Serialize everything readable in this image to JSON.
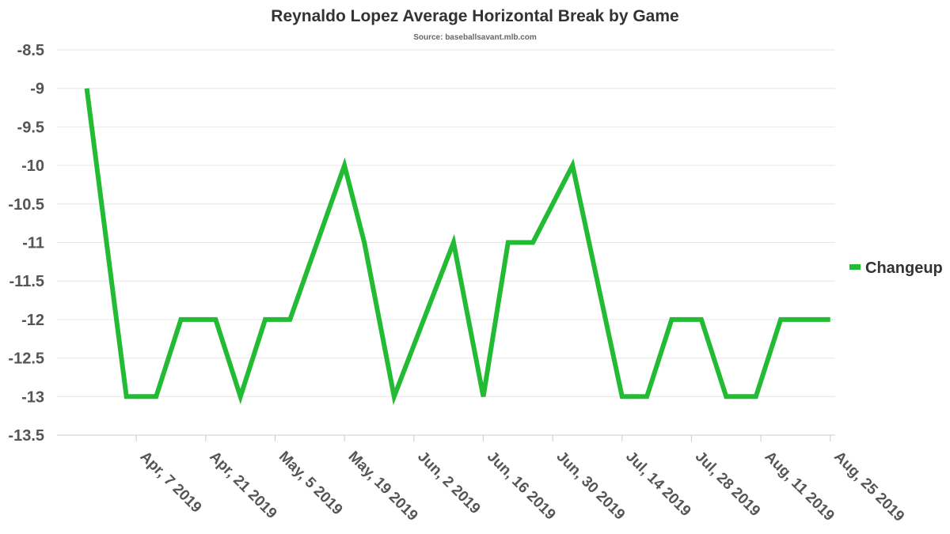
{
  "chart_data": {
    "type": "line",
    "title": "Reynaldo Lopez Average Horizontal Break by Game",
    "subtitle": "Source: baseballsavant.mlb.com",
    "xlabel": "",
    "ylabel": "",
    "ylim": [
      -13.5,
      -8.5
    ],
    "yticks": [
      -8.5,
      -9,
      -9.5,
      -10,
      -10.5,
      -11,
      -11.5,
      -12,
      -12.5,
      -13,
      -13.5
    ],
    "xlim": [
      "2019-03-22",
      "2019-08-26"
    ],
    "xticks": [
      {
        "date": "2019-04-07",
        "label": "Apr, 7 2019"
      },
      {
        "date": "2019-04-21",
        "label": "Apr, 21 2019"
      },
      {
        "date": "2019-05-05",
        "label": "May, 5 2019"
      },
      {
        "date": "2019-05-19",
        "label": "May, 19 2019"
      },
      {
        "date": "2019-06-02",
        "label": "Jun, 2 2019"
      },
      {
        "date": "2019-06-16",
        "label": "Jun, 16 2019"
      },
      {
        "date": "2019-06-30",
        "label": "Jun, 30 2019"
      },
      {
        "date": "2019-07-14",
        "label": "Jul, 14 2019"
      },
      {
        "date": "2019-07-28",
        "label": "Jul, 28 2019"
      },
      {
        "date": "2019-08-11",
        "label": "Aug, 11 2019"
      },
      {
        "date": "2019-08-25",
        "label": "Aug, 25 2019"
      }
    ],
    "grid": true,
    "legend": "right",
    "series": [
      {
        "name": "Changeup",
        "color": "#22bb33",
        "x": [
          "2019-03-28",
          "2019-04-03",
          "2019-04-05",
          "2019-04-11",
          "2019-04-16",
          "2019-04-23",
          "2019-04-28",
          "2019-05-03",
          "2019-05-08",
          "2019-05-19",
          "2019-05-23",
          "2019-05-29",
          "2019-06-04",
          "2019-06-10",
          "2019-06-16",
          "2019-06-21",
          "2019-06-26",
          "2019-07-04",
          "2019-07-14",
          "2019-07-19",
          "2019-07-24",
          "2019-07-30",
          "2019-08-04",
          "2019-08-10",
          "2019-08-15",
          "2019-08-25"
        ],
        "values": [
          -9,
          -12,
          -13,
          -13,
          -12,
          -12,
          -13,
          -12,
          -12,
          -10,
          -11,
          -13,
          -12,
          -11,
          -13,
          -11,
          -11,
          -10,
          -13,
          -13,
          -12,
          -12,
          -13,
          -13,
          -12,
          -12
        ]
      }
    ]
  }
}
